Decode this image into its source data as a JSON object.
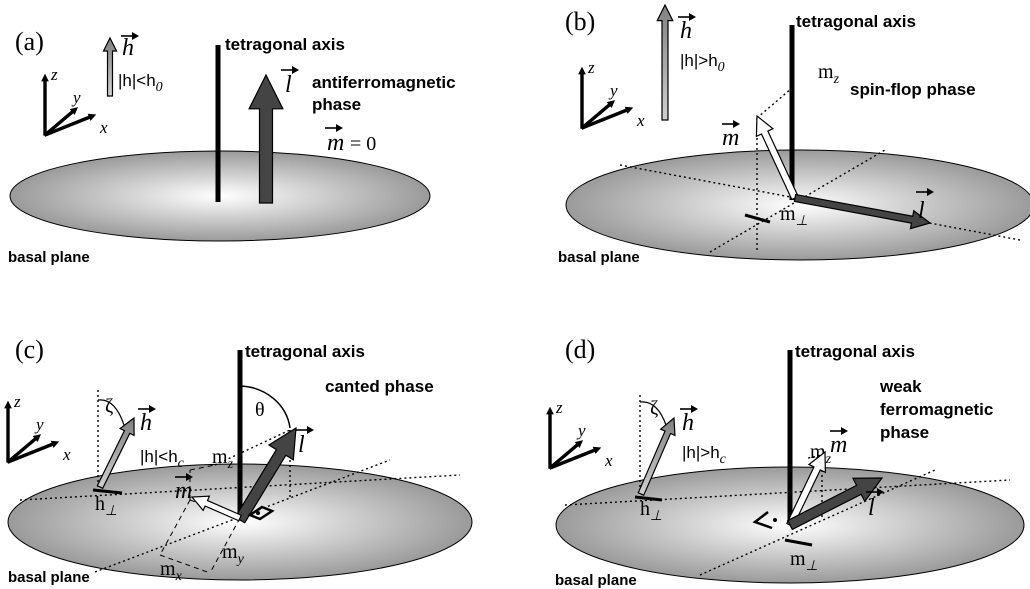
{
  "panels": [
    {
      "label": "(a)",
      "axes": {
        "z": "z",
        "y": "y",
        "x": "x"
      },
      "field_symbol": "h",
      "field_condition": {
        "text": "|h|<h",
        "sub": "0"
      },
      "axis_label": "tetragonal axis",
      "l": "l",
      "phase": [
        "antiferromagnetic",
        "phase"
      ],
      "m": "m",
      "m_value": "= 0",
      "plane": "basal plane"
    },
    {
      "label": "(b)",
      "axes": {
        "z": "z",
        "y": "y",
        "x": "x"
      },
      "field_symbol": "h",
      "field_condition": {
        "text": "|h|>h",
        "sub": "0"
      },
      "axis_label": "tetragonal axis",
      "mz": {
        "text": "m",
        "sub": "z"
      },
      "phase": [
        "spin-flop phase"
      ],
      "m": "m",
      "l": "l",
      "m_perp": {
        "text": "m",
        "sub": "⊥"
      },
      "plane": "basal plane"
    },
    {
      "label": "(c)",
      "axes": {
        "z": "z",
        "y": "y",
        "x": "x"
      },
      "angle_zeta": "ζ",
      "field_symbol": "h",
      "field_condition": {
        "text": "|h|<h",
        "sub": "c"
      },
      "h_perp": {
        "text": "h",
        "sub": "⊥"
      },
      "axis_label": "tetragonal axis",
      "angle_theta": "θ",
      "phase": [
        "canted phase"
      ],
      "l": "l",
      "mz": {
        "text": "m",
        "sub": "z"
      },
      "m": "m",
      "mx": {
        "text": "m",
        "sub": "x"
      },
      "my": {
        "text": "m",
        "sub": "y"
      },
      "plane": "basal plane"
    },
    {
      "label": "(d)",
      "axes": {
        "z": "z",
        "y": "y",
        "x": "x"
      },
      "angle_zeta": "ζ",
      "field_symbol": "h",
      "field_condition": {
        "text": "|h|>h",
        "sub": "c"
      },
      "h_perp": {
        "text": "h",
        "sub": "⊥"
      },
      "axis_label": "tetragonal axis",
      "phase": [
        "weak",
        "ferromagnetic",
        "phase"
      ],
      "mz": {
        "text": "m",
        "sub": "z"
      },
      "m": "m",
      "l": "l",
      "m_perp": {
        "text": "m",
        "sub": "⊥"
      },
      "plane": "basal plane"
    }
  ]
}
